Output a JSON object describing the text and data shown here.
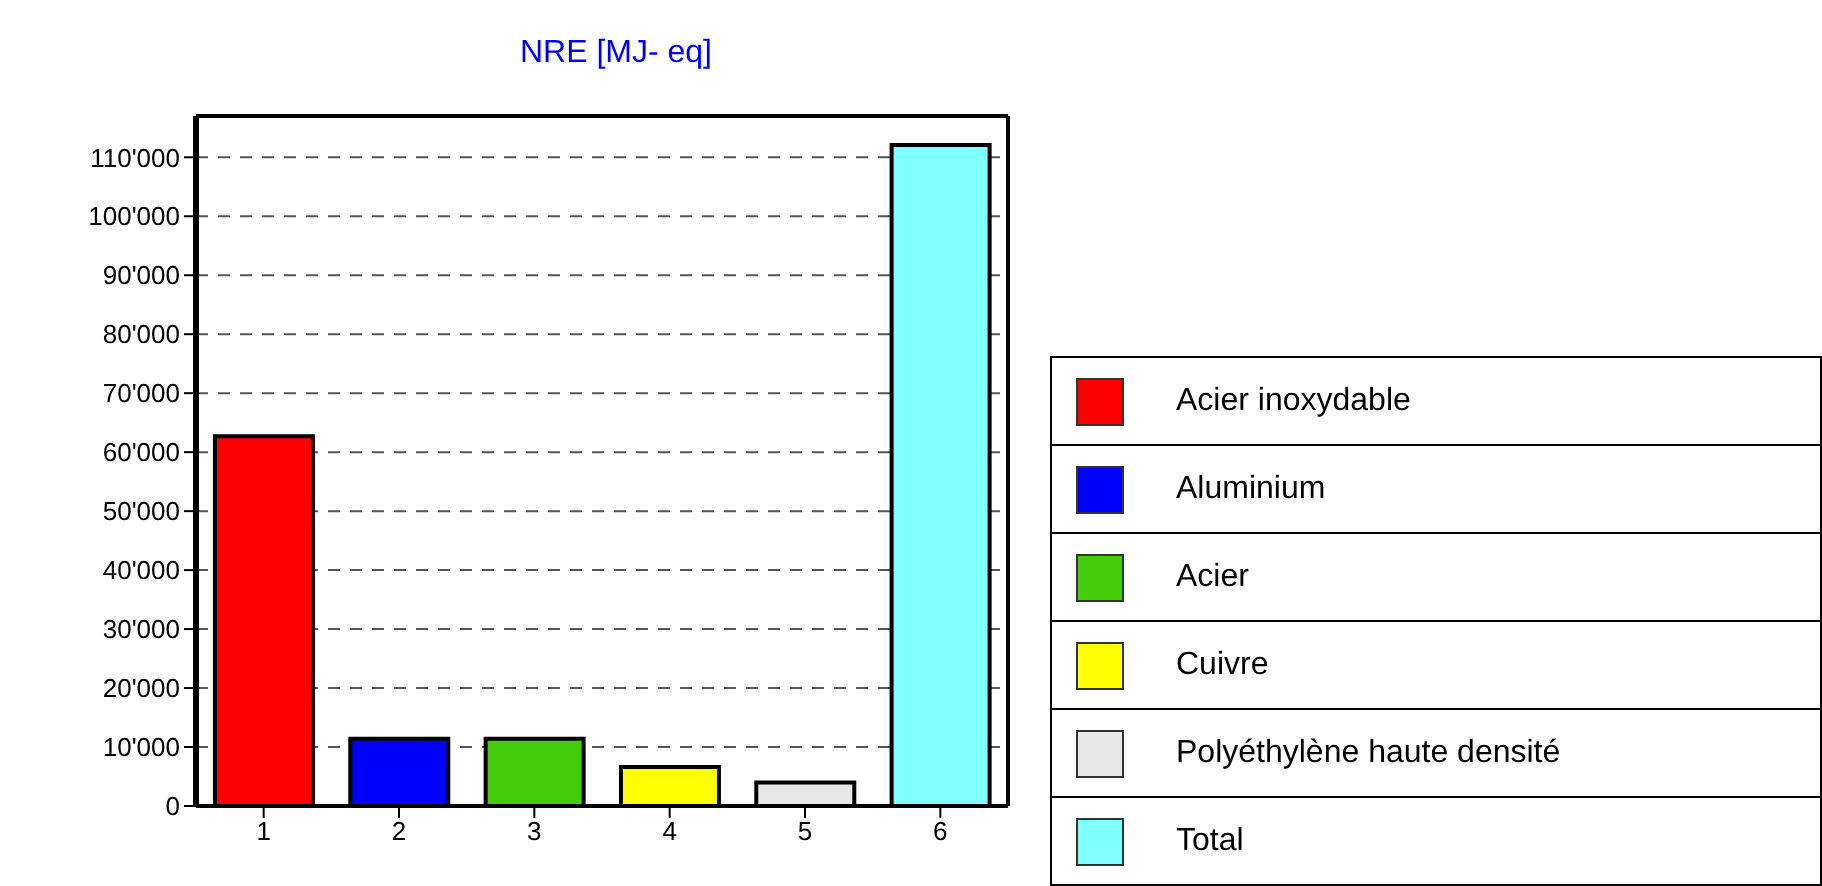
{
  "chart_data": {
    "type": "bar",
    "title": "NRE [MJ- eq]",
    "categories": [
      "1",
      "2",
      "3",
      "4",
      "5",
      "6"
    ],
    "series": [
      {
        "name": "Acier inoxydable",
        "color": "#ff0000",
        "values": [
          62700,
          null,
          null,
          null,
          null,
          null
        ]
      },
      {
        "name": "Aluminium",
        "color": "#0000ff",
        "values": [
          null,
          11400,
          null,
          null,
          null,
          null
        ]
      },
      {
        "name": "Acier",
        "color": "#44cc0a",
        "values": [
          null,
          null,
          11400,
          null,
          null,
          null
        ]
      },
      {
        "name": "Cuivre",
        "color": "#ffff00",
        "values": [
          null,
          null,
          null,
          6600,
          null,
          null
        ]
      },
      {
        "name": "Polyéthylène haute densité",
        "color": "#e8e8e8",
        "values": [
          null,
          null,
          null,
          null,
          4000,
          null
        ]
      },
      {
        "name": "Total",
        "color": "#80ffff",
        "values": [
          null,
          null,
          null,
          null,
          null,
          112100
        ]
      }
    ],
    "ylim": [
      0,
      117000
    ],
    "yticks": [
      0,
      {
        "value": 10000,
        "label": "10'000"
      },
      {
        "value": 20000,
        "label": "20'000"
      },
      {
        "value": 30000,
        "label": "30'000"
      },
      {
        "value": 40000,
        "label": "40'000"
      },
      {
        "value": 50000,
        "label": "50'000"
      },
      {
        "value": 60000,
        "label": "60'000"
      },
      {
        "value": 70000,
        "label": "70'000"
      },
      {
        "value": 80000,
        "label": "80'000"
      },
      {
        "value": 90000,
        "label": "90'000"
      },
      {
        "value": 100000,
        "label": "100'000"
      },
      {
        "value": 110000,
        "label": "110'000"
      }
    ],
    "grid": "y",
    "legend": "right"
  }
}
